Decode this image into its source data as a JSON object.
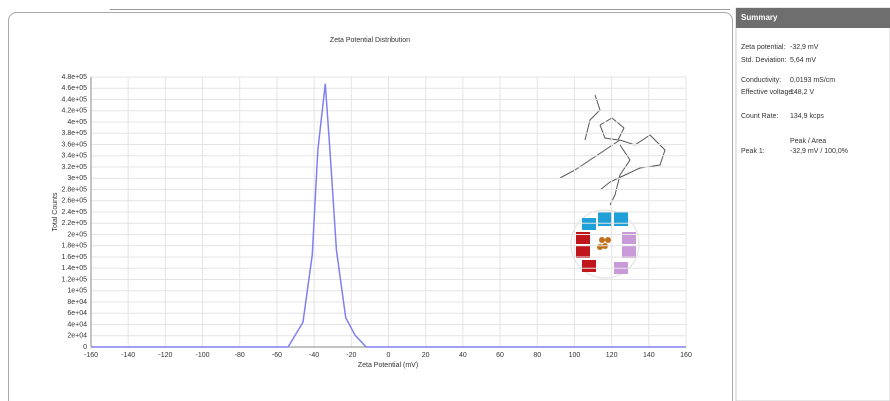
{
  "chart_data": {
    "type": "line",
    "title": "Zeta Potential Distribution",
    "x_label": "Zeta Potential (mV)",
    "y_label": "Total Counts",
    "x": [
      -160,
      -54,
      -46,
      -41,
      -38,
      -34,
      -31.5,
      -28,
      -23,
      -18,
      -12,
      160
    ],
    "series": [
      {
        "name": "Total Counts",
        "color": "#8080f0",
        "values": [
          0,
          0,
          44000,
          164000,
          350000,
          468000,
          350000,
          172000,
          52000,
          21000,
          0,
          0
        ]
      }
    ],
    "xlim": [
      -160,
      160
    ],
    "xticks": [
      -160,
      -140,
      -120,
      -100,
      -80,
      -60,
      -40,
      -20,
      0,
      20,
      40,
      60,
      80,
      100,
      120,
      140,
      160
    ],
    "ylim": [
      0,
      480000
    ],
    "yticks": [
      0,
      {
        "value": 20000,
        "label": "2e+04"
      },
      {
        "value": 40000,
        "label": "4e+04"
      },
      {
        "value": 60000,
        "label": "6e+04"
      },
      {
        "value": 80000,
        "label": "8e+04"
      },
      {
        "value": 100000,
        "label": "1e+05"
      },
      {
        "value": 120000,
        "label": "1.2e+05"
      },
      {
        "value": 140000,
        "label": "1.4e+05"
      },
      {
        "value": 160000,
        "label": "1.6e+05"
      },
      {
        "value": 180000,
        "label": "1.8e+05"
      },
      {
        "value": 200000,
        "label": "2e+05"
      },
      {
        "value": 220000,
        "label": "2.2e+05"
      },
      {
        "value": 240000,
        "label": "2.4e+05"
      },
      {
        "value": 260000,
        "label": "2.6e+05"
      },
      {
        "value": 280000,
        "label": "2.8e+05"
      },
      {
        "value": 300000,
        "label": "3e+05"
      },
      {
        "value": 320000,
        "label": "3.2e+05"
      },
      {
        "value": 340000,
        "label": "3.4e+05"
      },
      {
        "value": 360000,
        "label": "3.6e+05"
      },
      {
        "value": 380000,
        "label": "3.8e+05"
      },
      {
        "value": 400000,
        "label": "4e+05"
      },
      {
        "value": 420000,
        "label": "4.2e+05"
      },
      {
        "value": 440000,
        "label": "4.4e+05"
      },
      {
        "value": 460000,
        "label": "4.6e+05"
      },
      {
        "value": 480000,
        "label": "4.8e+05"
      }
    ],
    "grid": true
  },
  "summary": {
    "title": "Summary",
    "rows": [
      [
        "Zeta potential:",
        "-32,9 mV"
      ],
      [
        "Std. Deviation:",
        "5,64 mV"
      ],
      [
        "Conductivity:",
        "0,0193 mS/cm"
      ],
      [
        "Effective voltage:",
        "148,2 V"
      ],
      [
        "Count Rate:",
        "134,9 kcps"
      ]
    ],
    "peak_header": "Peak / Area",
    "peak_label": "Peak 1:",
    "peak_value": "-32,9 mV / 100,0%"
  }
}
